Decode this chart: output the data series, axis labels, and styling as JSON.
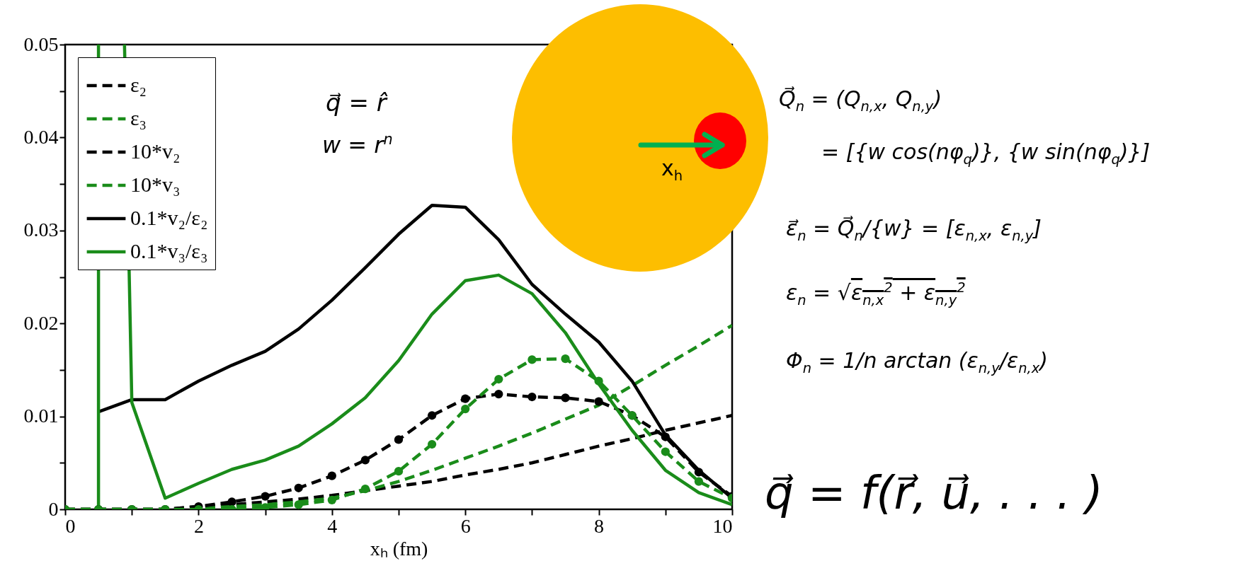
{
  "chart_data": {
    "type": "line",
    "xlabel": "xₕ (fm)",
    "x": [
      0,
      0.5,
      1,
      1.5,
      2,
      2.5,
      3,
      3.5,
      4,
      4.5,
      5,
      5.5,
      6,
      6.5,
      7,
      7.5,
      8,
      8.5,
      9,
      9.5,
      10
    ],
    "xlim": [
      0,
      10
    ],
    "xticks": [
      0,
      {
        "value": 1,
        "label": null
      },
      2,
      {
        "value": 3,
        "label": null
      },
      4,
      {
        "value": 5,
        "label": null
      },
      6,
      {
        "value": 7,
        "label": null
      },
      8,
      {
        "value": 9,
        "label": null
      },
      10
    ],
    "ylim": [
      0,
      0.05
    ],
    "yticks": [
      0,
      {
        "value": 0.005,
        "label": null
      },
      0.01,
      {
        "value": 0.015,
        "label": null
      },
      0.02,
      {
        "value": 0.025,
        "label": null
      },
      0.03,
      {
        "value": 0.035,
        "label": null
      },
      0.04,
      {
        "value": 0.045,
        "label": null
      },
      0.05
    ],
    "grid": false,
    "legend": "top left",
    "series": [
      {
        "name": "ε₂",
        "color": "#000000",
        "line_style": "dashed",
        "marker": "none",
        "values": [
          0,
          0,
          0,
          0,
          0.0003,
          0.0005,
          0.0008,
          0.0011,
          0.0015,
          0.002,
          0.0025,
          0.003,
          0.0037,
          0.0043,
          0.005,
          0.0059,
          0.0068,
          0.0076,
          0.0085,
          0.0093,
          0.0101
        ]
      },
      {
        "name": "ε₃",
        "color": "#1a8c1a",
        "line_style": "dashed",
        "marker": "none",
        "values": [
          0,
          0,
          0,
          0,
          0.0001,
          0.0003,
          0.0005,
          0.0008,
          0.0012,
          0.002,
          0.003,
          0.0042,
          0.0055,
          0.0068,
          0.0082,
          0.0097,
          0.0112,
          0.0133,
          0.0155,
          0.0176,
          0.0198
        ]
      },
      {
        "name": "10*v₂",
        "color": "#000000",
        "line_style": "dashed",
        "marker": "circle",
        "values": [
          0,
          0,
          0,
          0,
          0.0003,
          0.0008,
          0.0014,
          0.0023,
          0.0036,
          0.0053,
          0.0075,
          0.0101,
          0.0119,
          0.0124,
          0.0121,
          0.012,
          0.0116,
          0.0101,
          0.0078,
          0.004,
          0.0014
        ]
      },
      {
        "name": "10*v₃",
        "color": "#1a8c1a",
        "line_style": "dashed",
        "marker": "circle",
        "values": [
          0,
          0,
          0,
          0,
          0,
          0,
          0.0002,
          0.0005,
          0.001,
          0.0022,
          0.0041,
          0.007,
          0.0108,
          0.014,
          0.0161,
          0.0162,
          0.0138,
          0.0101,
          0.0062,
          0.003,
          0.0012
        ]
      },
      {
        "name": "0.1*v₂/ε₂",
        "color": "#000000",
        "line_style": "solid",
        "marker": "none",
        "x": [
          0.5,
          1,
          1.5,
          2,
          2.5,
          3,
          3.5,
          4,
          4.5,
          5,
          5.5,
          6,
          6.5,
          7,
          7.5,
          8,
          8.5,
          9,
          9.5,
          10
        ],
        "values": [
          0.0105,
          0.0118,
          0.0118,
          0.0138,
          0.0155,
          0.017,
          0.0194,
          0.0225,
          0.026,
          0.0296,
          0.0327,
          0.0325,
          0.029,
          0.0242,
          0.021,
          0.018,
          0.0138,
          0.008,
          0.0042,
          0.0012
        ]
      },
      {
        "name": "0.1*v₃/ε₃",
        "color": "#1a8c1a",
        "line_style": "solid",
        "marker": "none",
        "x": [
          0.5,
          0.5,
          0.7,
          0.89,
          1,
          1.5,
          2,
          2.5,
          3,
          3.5,
          4,
          4.5,
          5,
          5.5,
          6,
          6.5,
          7,
          7.5,
          8,
          8.5,
          9,
          9.5,
          10
        ],
        "values": [
          0,
          0.05,
          null,
          0.05,
          0.0115,
          0.0012,
          0.0028,
          0.0043,
          0.0053,
          0.0068,
          0.0092,
          0.012,
          0.016,
          0.021,
          0.0246,
          0.0252,
          0.0232,
          0.019,
          0.0135,
          0.0085,
          0.0042,
          0.0018,
          0.0005
        ]
      }
    ],
    "annotations": [
      "q⃗ = r̂",
      "w = r$^{n}$",
      "x$_{h}$",
      "Q⃗$_{n}$ = (Q$_{n,x}$, Q$_{n,y}$)",
      "= [{w cos(nφ$_{q}$)}, {w sin(nφ$_{q}$)}]",
      "ε⃗$_{n}$ = Q⃗$_{n}$/{w} = [ε$_{n,x}$, ε$_{n,y}$]",
      "ε$_{n}$ = √ε$_{n,x}$$^{2}$ + ε$_{n,y}$$^{2}$",
      "Φ$_{n}$ = 1/n arctan (ε$_{n,y}$/ε$_{n,x}$)",
      "q⃗ = f(r⃗, u⃗, . . . )"
    ]
  }
}
